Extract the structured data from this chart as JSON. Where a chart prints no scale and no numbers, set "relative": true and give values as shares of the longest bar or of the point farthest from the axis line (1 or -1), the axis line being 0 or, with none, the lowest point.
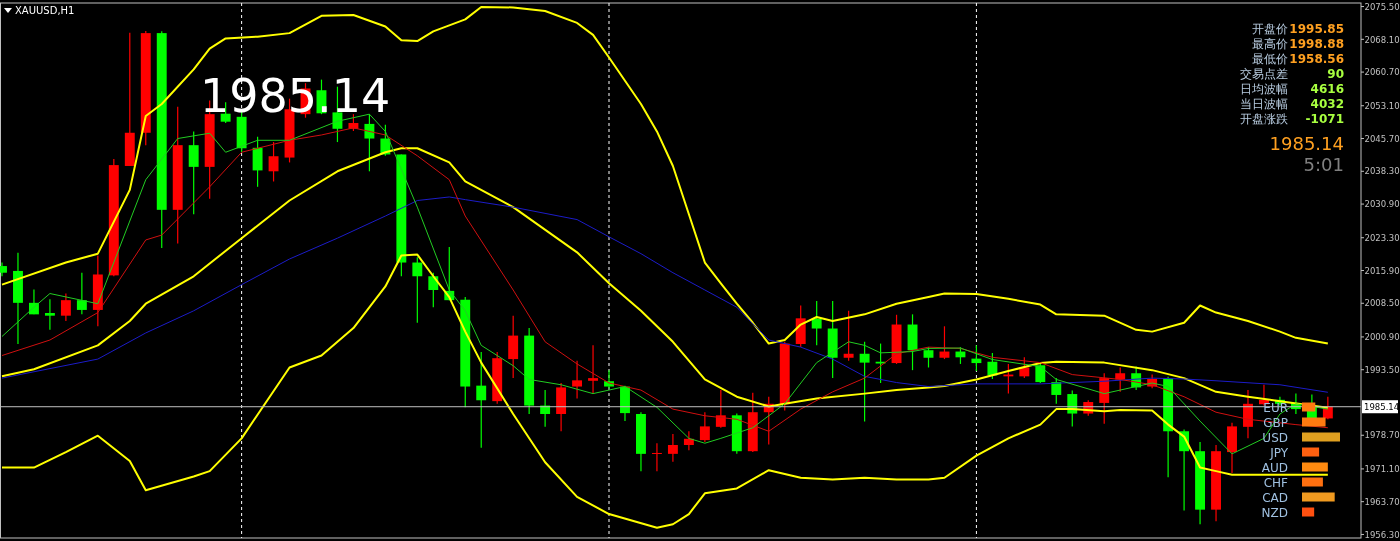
{
  "chart_data": [
    {
      "type": "candlestick",
      "title": "XAUUSD,H1",
      "categories": [
        null,
        null,
        null,
        null,
        null,
        null,
        null,
        null,
        null,
        null,
        null,
        null,
        null,
        null,
        null,
        null,
        null,
        null,
        null,
        null,
        null,
        null,
        null,
        null,
        null,
        null,
        null,
        null,
        null,
        null,
        null,
        null,
        null,
        null,
        null,
        null,
        null,
        null,
        null,
        null,
        null,
        null,
        null,
        null,
        null,
        null,
        null,
        null,
        null,
        null,
        null,
        null,
        null,
        null,
        null,
        null,
        null,
        null,
        null,
        null,
        null,
        null,
        null,
        null,
        null,
        null,
        null,
        null,
        null,
        null,
        null,
        null,
        null,
        null,
        null,
        null,
        null,
        null,
        null,
        null,
        null,
        null,
        null,
        null
      ],
      "ohlc": [
        [
          2016.9,
          2017.7,
          2014.6,
          2015.4
        ],
        [
          2015.8,
          2019.9,
          1999.3,
          2008.6
        ],
        [
          2008.6,
          2011.6,
          2006.0,
          2006.0
        ],
        [
          2006.3,
          2009.4,
          2002.5,
          2005.7
        ],
        [
          2005.7,
          2010.7,
          2004.5,
          2009.2
        ],
        [
          2009.2,
          2015.4,
          2006.0,
          2007.0
        ],
        [
          2007.0,
          2019.3,
          2003.3,
          2015.0
        ],
        [
          2014.8,
          2041.1,
          2014.6,
          2039.7
        ],
        [
          2039.5,
          2069.6,
          2039.5,
          2047.0
        ],
        [
          2047.0,
          2070.0,
          2044.2,
          2069.5
        ],
        [
          2069.5,
          2069.9,
          2021.0,
          2029.6
        ],
        [
          2029.6,
          2052.9,
          2022.0,
          2044.2
        ],
        [
          2044.2,
          2047.3,
          2028.6,
          2039.3
        ],
        [
          2039.3,
          2054.3,
          2032.1,
          2051.2
        ],
        [
          2051.3,
          2053.9,
          2049.2,
          2049.5
        ],
        [
          2050.6,
          2052.0,
          2042.6,
          2043.5
        ],
        [
          2043.6,
          2046.1,
          2034.8,
          2038.5
        ],
        [
          2038.3,
          2044.9,
          2036.0,
          2041.7
        ],
        [
          2041.4,
          2054.7,
          2040.3,
          2052.3
        ],
        [
          2051.2,
          2058.2,
          2050.4,
          2057.0
        ],
        [
          2056.6,
          2059.0,
          2051.2,
          2051.4
        ],
        [
          2051.6,
          2057.4,
          2044.9,
          2047.9
        ],
        [
          2047.9,
          2051.2,
          2047.4,
          2049.2
        ],
        [
          2049.0,
          2051.2,
          2038.3,
          2045.7
        ],
        [
          2045.7,
          2048.8,
          2041.8,
          2042.1
        ],
        [
          2042.1,
          2042.1,
          2014.6,
          2017.7
        ],
        [
          2017.7,
          2018.9,
          2004.1,
          2014.6
        ],
        [
          2014.6,
          2015.4,
          2007.6,
          2011.5
        ],
        [
          2011.3,
          2021.2,
          2009.2,
          2009.2
        ],
        [
          2009.3,
          2009.9,
          1985.0,
          1989.7
        ],
        [
          1989.9,
          1997.5,
          1975.9,
          1986.6
        ],
        [
          1986.4,
          1997.5,
          1985.8,
          1996.1
        ],
        [
          1995.9,
          2005.7,
          1991.6,
          2001.2
        ],
        [
          2001.2,
          2002.9,
          1983.5,
          1985.4
        ],
        [
          1985.4,
          1988.9,
          1980.6,
          1983.5
        ],
        [
          1983.5,
          1990.5,
          1979.6,
          1989.5
        ],
        [
          1989.7,
          1995.5,
          1987.0,
          1991.1
        ],
        [
          1991.0,
          1999.0,
          1988.1,
          1991.6
        ],
        [
          1990.9,
          1993.4,
          1989.3,
          1989.7
        ],
        [
          1989.7,
          1989.9,
          1981.9,
          1983.7
        ],
        [
          1983.5,
          1983.9,
          1970.6,
          1974.5
        ],
        [
          1974.5,
          1976.9,
          1970.6,
          1974.7
        ],
        [
          1974.5,
          1979.0,
          1972.7,
          1976.5
        ],
        [
          1976.5,
          1979.6,
          1975.3,
          1977.9
        ],
        [
          1977.6,
          1983.9,
          1977.2,
          1980.7
        ],
        [
          1980.6,
          1988.9,
          1980.4,
          1983.2
        ],
        [
          1983.2,
          1983.6,
          1974.5,
          1975.1
        ],
        [
          1975.1,
          1988.3,
          1974.9,
          1983.9
        ],
        [
          1983.9,
          1987.4,
          1976.6,
          1985.8
        ],
        [
          1985.7,
          1999.8,
          1984.3,
          1999.4
        ],
        [
          1999.3,
          2008.0,
          1998.6,
          2005.1
        ],
        [
          2005.0,
          2009.0,
          1999.0,
          2002.8
        ],
        [
          2002.8,
          2009.0,
          1991.6,
          1996.2
        ],
        [
          1996.2,
          2006.8,
          1995.5,
          1997.1
        ],
        [
          1997.1,
          1999.8,
          1981.8,
          1995.1
        ],
        [
          1995.3,
          1999.4,
          1990.5,
          1994.9
        ],
        [
          1995.0,
          2005.9,
          1994.8,
          2003.7
        ],
        [
          2003.7,
          2006.0,
          1993.4,
          1997.9
        ],
        [
          1997.9,
          1998.6,
          1994.0,
          1996.2
        ],
        [
          1996.2,
          2003.3,
          1995.9,
          1997.6
        ],
        [
          1997.6,
          1998.6,
          1994.8,
          1996.3
        ],
        [
          1996.0,
          1999.0,
          1993.2,
          1995.0
        ],
        [
          1995.3,
          1997.3,
          1991.4,
          1992.2
        ],
        [
          1992.0,
          1994.8,
          1988.1,
          1992.4
        ],
        [
          1992.0,
          1996.3,
          1991.6,
          1994.0
        ],
        [
          1994.5,
          1995.1,
          1990.5,
          1990.7
        ],
        [
          1990.7,
          1991.6,
          1985.8,
          1987.8
        ],
        [
          1988.0,
          1988.8,
          1980.7,
          1983.6
        ],
        [
          1983.6,
          1986.6,
          1983.1,
          1986.2
        ],
        [
          1986.0,
          1992.7,
          1981.3,
          1991.6
        ],
        [
          1991.3,
          1994.0,
          1988.5,
          1992.7
        ],
        [
          1992.7,
          1994.2,
          1988.9,
          1989.5
        ],
        [
          1989.7,
          1992.4,
          1989.3,
          1991.4
        ],
        [
          1991.5,
          1991.9,
          1969.2,
          1979.6
        ],
        [
          1979.6,
          1980.0,
          1961.7,
          1975.1
        ],
        [
          1975.1,
          1977.2,
          1958.6,
          1961.9
        ],
        [
          1961.9,
          1976.5,
          1959.3,
          1975.1
        ],
        [
          1974.9,
          1981.5,
          1970.2,
          1980.7
        ],
        [
          1980.6,
          1988.9,
          1978.0,
          1985.8
        ],
        [
          1985.7,
          1990.1,
          1985.4,
          1986.7
        ],
        [
          1986.7,
          1987.4,
          1985.4,
          1985.8
        ],
        [
          1986.0,
          1988.1,
          1983.5,
          1984.6
        ],
        [
          1985.2,
          1987.9,
          1982.3,
          1982.5
        ],
        [
          1982.5,
          1987.4,
          1982.3,
          1985.14
        ]
      ],
      "colors": [
        "#00ff00",
        "#00ff00",
        "#00ff00",
        "#00ff00",
        "#ff0000",
        "#00ff00",
        "#ff0000",
        "#ff0000",
        "#ff0000",
        "#ff0000",
        "#00ff00",
        "#ff0000",
        "#00ff00",
        "#ff0000",
        "#00ff00",
        "#00ff00",
        "#00ff00",
        "#ff0000",
        "#ff0000",
        "#ff0000",
        "#00ff00",
        "#00ff00",
        "#ff0000",
        "#00ff00",
        "#00ff00",
        "#00ff00",
        "#00ff00",
        "#00ff00",
        "#00ff00",
        "#00ff00",
        "#00ff00",
        "#ff0000",
        "#ff0000",
        "#00ff00",
        "#00ff00",
        "#ff0000",
        "#ff0000",
        "#ff0000",
        "#00ff00",
        "#00ff00",
        "#00ff00",
        "#ff0000",
        "#ff0000",
        "#ff0000",
        "#ff0000",
        "#ff0000",
        "#00ff00",
        "#ff0000",
        "#ff0000",
        "#ff0000",
        "#ff0000",
        "#00ff00",
        "#00ff00",
        "#ff0000",
        "#00ff00",
        "#00ff00",
        "#ff0000",
        "#00ff00",
        "#00ff00",
        "#ff0000",
        "#00ff00",
        "#00ff00",
        "#00ff00",
        "#ff0000",
        "#ff0000",
        "#00ff00",
        "#00ff00",
        "#00ff00",
        "#ff0000",
        "#ff0000",
        "#ff0000",
        "#00ff00",
        "#ff0000",
        "#00ff00",
        "#00ff00",
        "#00ff00",
        "#ff0000",
        "#ff0000",
        "#ff0000",
        "#ff0000",
        "#00ff00",
        "#00ff00",
        "#00ff00",
        "#ff0000"
      ],
      "series": [
        {
          "type": "line",
          "color": "#ffff00",
          "values": [
            2012.7,
            null,
            null,
            null,
            2017.7,
            null,
            2019.7,
            null,
            2034.1,
            2050.8,
            2053.5,
            null,
            2061.3,
            2066.0,
            2068.3,
            null,
            2068.7,
            null,
            2069.5,
            null,
            2073.4,
            null,
            2073.6,
            null,
            2071.0,
            2067.9,
            2067.7,
            2069.9,
            null,
            2072.6,
            2075.4,
            null,
            2075.3,
            null,
            2074.5,
            null,
            2071.8,
            2069.1,
            2064.0,
            null,
            2053.5,
            2047.3,
            2039.5,
            2028.6,
            2017.7,
            2013.0,
            2008.4,
            2004.1,
            1999.4,
            2000.2,
            2003.7,
            2005.4,
            2004.5,
            null,
            2006.0,
            null,
            2008.4,
            null,
            2009.9,
            2010.7,
            null,
            2010.6,
            null,
            2009.5,
            null,
            2008.2,
            2006.0,
            null,
            null,
            2005.7,
            null,
            2002.5,
            2002.1,
            null,
            2004.1,
            2008.0,
            2006.4,
            null,
            2004.5,
            null,
            2002.1,
            2000.7,
            null,
            1999.4
          ]
        },
        {
          "type": "line",
          "color": "#ffff00",
          "values": [
            1992.0,
            null,
            1993.6,
            null,
            null,
            null,
            1999.0,
            null,
            2004.5,
            2008.4,
            null,
            null,
            2014.6,
            null,
            null,
            2023.2,
            null,
            null,
            2031.7,
            null,
            null,
            2038.3,
            null,
            null,
            2042.6,
            2043.5,
            2043.5,
            null,
            2040.3,
            2036.0,
            null,
            null,
            2030.2,
            null,
            null,
            null,
            2020.0,
            null,
            2013.0,
            null,
            2006.8,
            null,
            1999.8,
            null,
            1991.3,
            null,
            1987.4,
            null,
            1985.2,
            1985.8,
            null,
            1987.0,
            null,
            null,
            1988.1,
            null,
            1988.9,
            null,
            1989.5,
            1989.8,
            null,
            1991.3,
            null,
            1993.2,
            null,
            1995.0,
            1995.3,
            null,
            null,
            1995.1,
            null,
            null,
            1993.4,
            null,
            1991.6,
            null,
            1988.5,
            null,
            1987.4,
            null,
            1986.4,
            null,
            null,
            1984.9
          ]
        },
        {
          "type": "line",
          "color": "#ffff00",
          "values": [
            1971.4,
            null,
            1971.4,
            null,
            1974.9,
            null,
            1978.6,
            null,
            1972.9,
            1966.3,
            null,
            null,
            1969.4,
            1970.6,
            null,
            1978.0,
            null,
            null,
            1994.0,
            null,
            1996.7,
            null,
            2002.9,
            null,
            2012.3,
            2019.3,
            2019.5,
            2014.6,
            2009.9,
            2002.1,
            1995.1,
            null,
            1983.5,
            null,
            1972.6,
            null,
            1964.8,
            null,
            1960.9,
            null,
            null,
            1957.8,
            1958.6,
            1960.9,
            1965.6,
            null,
            1966.7,
            null,
            1970.8,
            null,
            1969.1,
            null,
            1968.7,
            null,
            1969.1,
            null,
            1968.7,
            null,
            1968.7,
            1969.1,
            null,
            1974.1,
            null,
            1978.0,
            null,
            1981.1,
            1984.6,
            1984.6,
            null,
            1984.1,
            1984.4,
            null,
            1984.3,
            1981.1,
            1978.4,
            1971.4,
            1970.6,
            1969.8,
            null,
            null,
            null,
            null,
            null,
            1969.8
          ]
        },
        {
          "type": "line",
          "color": "#1c1cc8",
          "values": [
            1991.6,
            null,
            null,
            null,
            null,
            null,
            1995.9,
            null,
            null,
            2001.8,
            null,
            null,
            2006.8,
            null,
            null,
            2012.7,
            null,
            null,
            2018.5,
            null,
            null,
            2023.2,
            null,
            null,
            2028.2,
            null,
            2031.7,
            null,
            2032.5,
            2031.9,
            null,
            null,
            2030.2,
            null,
            null,
            null,
            2027.4,
            null,
            2023.5,
            null,
            2019.7,
            null,
            2015.4,
            null,
            2011.5,
            null,
            2007.6,
            null,
            2000.2,
            null,
            1998.6,
            null,
            1995.9,
            null,
            1992.0,
            null,
            1990.6,
            null,
            1989.7,
            null,
            null,
            1990.3,
            null,
            null,
            null,
            1990.3,
            null,
            null,
            null,
            1990.9,
            null,
            null,
            1991.6,
            null,
            1991.4,
            null,
            1991.0,
            null,
            null,
            null,
            1990.1,
            null,
            null,
            1988.4
          ]
        },
        {
          "type": "line",
          "color": "#d01010",
          "values": [
            1996.7,
            null,
            null,
            2000.2,
            null,
            null,
            2006.4,
            null,
            null,
            2022.8,
            2023.9,
            null,
            null,
            2034.8,
            null,
            2042.6,
            null,
            null,
            2045.3,
            null,
            2046.5,
            null,
            2048.1,
            null,
            2046.5,
            null,
            2041.8,
            null,
            2036.4,
            2028.2,
            null,
            null,
            2011.5,
            null,
            1999.8,
            null,
            1994.8,
            null,
            1990.5,
            null,
            1988.9,
            null,
            1984.6,
            null,
            1983.1,
            null,
            1982.3,
            null,
            1979.6,
            null,
            1984.6,
            null,
            1988.5,
            null,
            1991.6,
            null,
            1997.1,
            null,
            1998.6,
            null,
            1998.3,
            null,
            1996.3,
            null,
            null,
            1995.1,
            null,
            1992.4,
            null,
            null,
            1991.3,
            null,
            1990.1,
            null,
            1987.4,
            null,
            1983.9,
            null,
            1982.3,
            null,
            null,
            1981.1,
            null,
            1980.4
          ]
        },
        {
          "type": "line",
          "color": "#22cc22",
          "values": [
            2001.0,
            null,
            2007.6,
            2010.7,
            null,
            null,
            2008.4,
            null,
            null,
            2036.4,
            null,
            2045.7,
            null,
            2046.9,
            2042.6,
            null,
            2045.3,
            null,
            2045.3,
            null,
            null,
            2049.6,
            null,
            2051.2,
            2047.3,
            null,
            2030.2,
            null,
            2011.5,
            2006.8,
            1999.0,
            null,
            1994.4,
            1991.3,
            null,
            1990.1,
            null,
            1988.1,
            null,
            1989.7,
            null,
            1985.0,
            null,
            1978.0,
            1976.9,
            1978.0,
            null,
            1980.4,
            null,
            1985.8,
            null,
            1995.1,
            null,
            1999.8,
            1999.0,
            1997.3,
            null,
            1997.6,
            1998.3,
            null,
            1998.4,
            null,
            1995.8,
            null,
            null,
            1994.2,
            1991.3,
            null,
            null,
            1988.1,
            null,
            null,
            1990.5,
            1989.7,
            null,
            1981.9,
            null,
            1974.5,
            null,
            1978.0,
            1983.5,
            1985.8,
            null,
            1984.6
          ]
        }
      ],
      "grid": "x",
      "ylim": [
        1955.5,
        2076.3
      ],
      "yticks": [
        {
          "value": 2075.5,
          "label": "2075.50"
        },
        {
          "value": 2068.1,
          "label": "2068.10"
        },
        {
          "value": 2060.7,
          "label": "2060.70"
        },
        {
          "value": 2053.1,
          "label": "2053.10"
        },
        {
          "value": 2045.7,
          "label": "2045.70"
        },
        {
          "value": 2038.3,
          "label": "2038.30"
        },
        {
          "value": 2030.9,
          "label": "2030.90"
        },
        {
          "value": 2023.3,
          "label": "2023.30"
        },
        {
          "value": 2015.9,
          "label": "2015.90"
        },
        {
          "value": 2008.5,
          "label": "2008.50"
        },
        {
          "value": 2000.9,
          "label": "2000.90"
        },
        {
          "value": 1993.5,
          "label": "1993.50"
        },
        {
          "value": 1978.7,
          "label": "1978.70"
        },
        {
          "value": 1971.1,
          "label": "1971.10"
        },
        {
          "value": 1963.7,
          "label": "1963.70"
        },
        {
          "value": 1956.3,
          "label": "1956.30"
        }
      ],
      "ref_lines": [
        {
          "axis": "y",
          "value": 1985.14,
          "label": "1985.14",
          "color": "#c0c0c0"
        }
      ],
      "annotations": [
        "1985.14",
        "开盘价",
        "1995.85",
        "最高价",
        "1998.88",
        "最低价",
        "1958.56",
        "交易点差",
        "90",
        "日均波幅",
        "4616",
        "当日波幅",
        "4032",
        "开盘涨跌",
        "-1071",
        "1985.14",
        "5:01"
      ]
    },
    {
      "type": "bar",
      "orientation": "horizontal",
      "relative": true,
      "categories": [
        "EUR",
        "GBP",
        "USD",
        "JPY",
        "AUD",
        "CHF",
        "CAD",
        "NZD"
      ],
      "values": [
        0.35,
        0.62,
        1,
        0.45,
        0.68,
        0.55,
        0.86,
        0.32
      ],
      "colors": [
        "#ff7a10",
        "#ff7a10",
        "#e0a020",
        "#ff6010",
        "#ff8a10",
        "#ff7010",
        "#f09a20",
        "#ff5010"
      ]
    }
  ]
}
